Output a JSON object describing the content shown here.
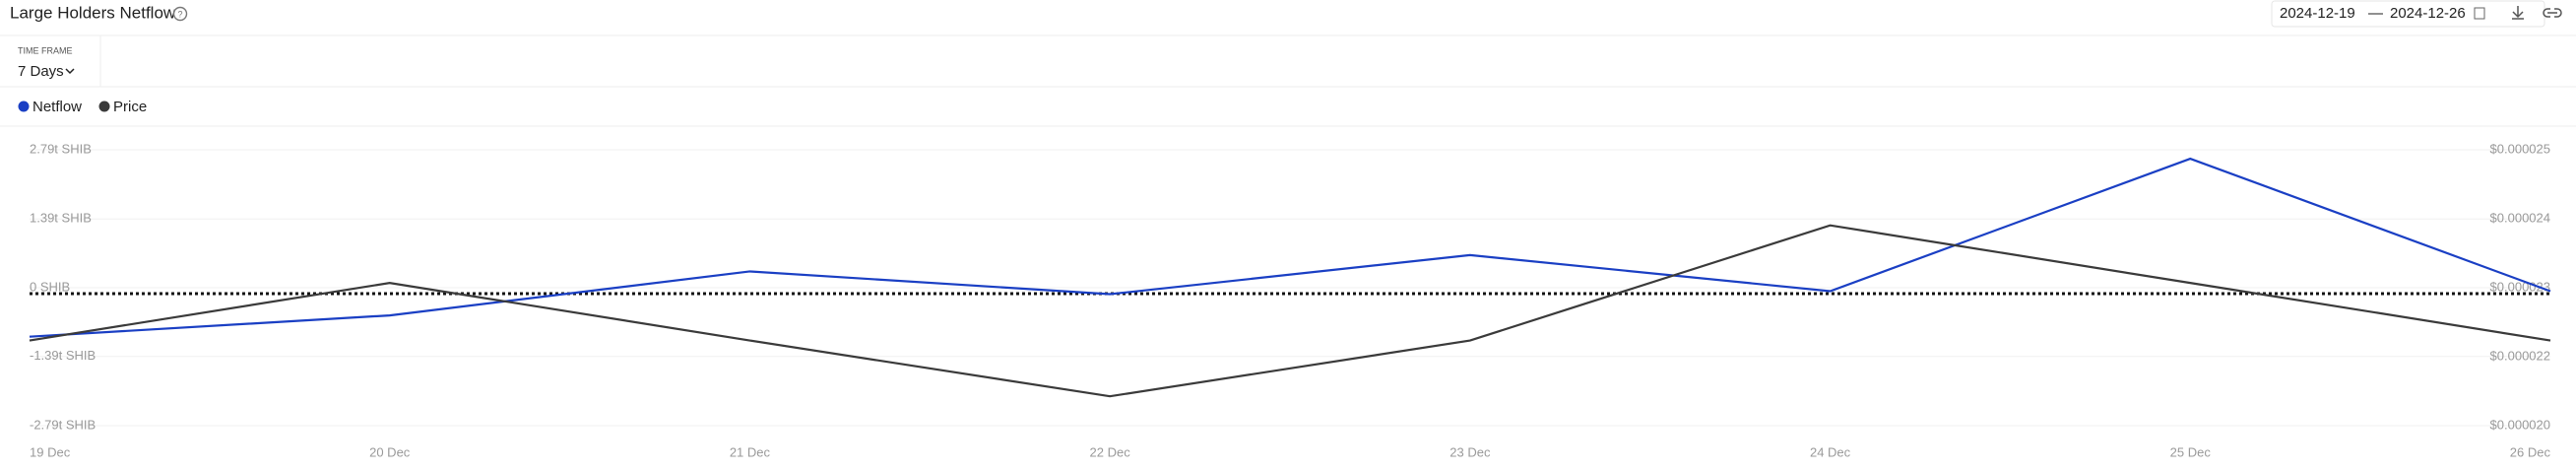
{
  "header": {
    "title": "Large Holders Netflow",
    "time_frame_label": "TIME FRAME",
    "time_frame": "7 Days",
    "date_from": "2024-12-19",
    "date_separator": "—",
    "date_to": "2024-12-26"
  },
  "chart_data": {
    "type": "line",
    "categories": [
      "19 Dec",
      "20 Dec",
      "21 Dec",
      "22 Dec",
      "23 Dec",
      "24 Dec",
      "25 Dec",
      "26 Dec"
    ],
    "series": [
      {
        "name": "Netflow",
        "color": "#1a3fc4",
        "values": [
          -0.99,
          -0.56,
          0.33,
          -0.13,
          0.66,
          -0.07,
          2.61,
          -0.07
        ]
      },
      {
        "name": "Price",
        "color": "#3a3a3a",
        "axis": "y2",
        "values": [
          2.182e-05,
          2.278e-05,
          2.182e-05,
          2.089e-05,
          2.182e-05,
          2.374e-05,
          2.278e-05,
          2.182e-05
        ]
      }
    ],
    "ylim": [
      -2.79,
      2.79
    ],
    "yticks": [
      {
        "value": 2.79,
        "label": "2.79t SHIB"
      },
      {
        "value": 1.39,
        "label": "1.39t SHIB"
      },
      {
        "value": 0,
        "label": "0 SHIB"
      },
      {
        "value": -1.39,
        "label": "-1.39t SHIB"
      },
      {
        "value": -2.79,
        "label": "-2.79t SHIB"
      }
    ],
    "y2lim": [
      2.04e-05,
      2.5e-05
    ],
    "y2ticks": [
      {
        "value": 2.5e-05,
        "label": "$0.000025"
      },
      {
        "value": 2.385e-05,
        "label": "$0.000024"
      },
      {
        "value": 2.27e-05,
        "label": "$0.000023"
      },
      {
        "value": 2.155e-05,
        "label": "$0.000022"
      },
      {
        "value": 2.04e-05,
        "label": "$0.000020"
      }
    ],
    "grid": true
  }
}
